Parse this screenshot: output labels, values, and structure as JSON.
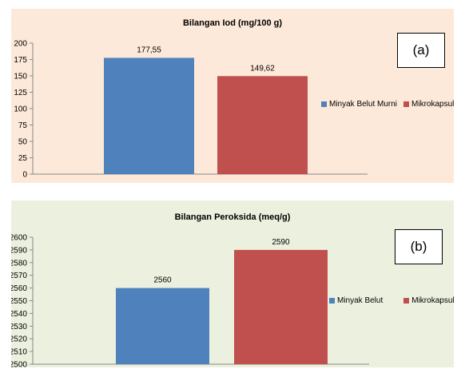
{
  "colors": {
    "series1": "#4f81bd",
    "series2": "#c0504d"
  },
  "chart_data": [
    {
      "type": "bar",
      "title": "Bilangan Iod (mg/100 g)",
      "panel_tag": "(a)",
      "background": "#fde9d9",
      "categories": [
        "Minyak Belut Murni",
        "Mikrokapsul"
      ],
      "values": [
        177.55,
        149.62
      ],
      "value_labels": [
        "177,55",
        "149,62"
      ],
      "ylim": [
        0,
        200
      ],
      "yticks": [
        0,
        25,
        50,
        75,
        100,
        125,
        150,
        175,
        200
      ],
      "grid": false,
      "legend": "right"
    },
    {
      "type": "bar",
      "title": "Bilangan Peroksida (meq/g)",
      "panel_tag": "(b)",
      "background": "#ebf1de",
      "categories": [
        "Minyak Belut",
        "Mikrokapsul"
      ],
      "values": [
        2560,
        2590
      ],
      "value_labels": [
        "2560",
        "2590"
      ],
      "ylim": [
        2500,
        2600
      ],
      "yticks": [
        2500,
        2510,
        2520,
        2530,
        2540,
        2550,
        2560,
        2570,
        2580,
        2590,
        2600
      ],
      "grid": false,
      "legend": "right"
    }
  ]
}
